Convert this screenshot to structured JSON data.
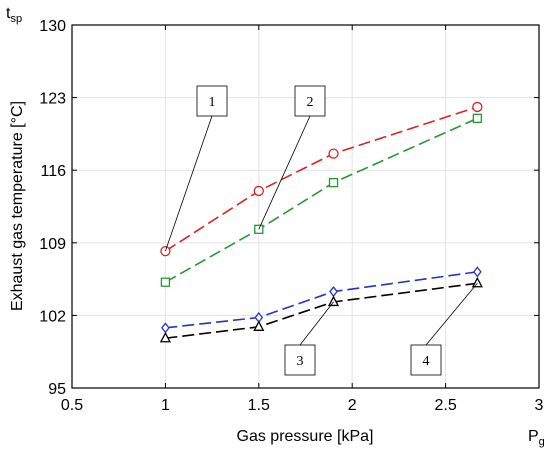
{
  "chart_data": {
    "type": "line",
    "xlabel": "Gas pressure [kPa]",
    "ylabel": "Exhaust gas temperature [°C]",
    "x_symbol": "P",
    "x_symbol_sub": "g",
    "y_symbol": "t",
    "y_symbol_sub": "sp",
    "xlim": [
      0.5,
      3
    ],
    "ylim": [
      95,
      130
    ],
    "xticks": [
      0.5,
      1,
      1.5,
      2,
      2.5,
      3
    ],
    "yticks": [
      95,
      102,
      109,
      116,
      123,
      130
    ],
    "grid": true,
    "series": [
      {
        "marker": "circle",
        "color": "#dd2222",
        "x": [
          1,
          1.5,
          1.9,
          2.67
        ],
        "y": [
          108.2,
          114,
          117.6,
          122.1
        ]
      },
      {
        "marker": "square",
        "color": "#229933",
        "x": [
          1,
          1.5,
          1.9,
          2.67
        ],
        "y": [
          105.2,
          110.3,
          114.8,
          121
        ]
      },
      {
        "marker": "diamond",
        "color": "#2233cc",
        "x": [
          1,
          1.5,
          1.9,
          2.67
        ],
        "y": [
          100.8,
          101.8,
          104.3,
          106.2
        ]
      },
      {
        "marker": "triangle",
        "color": "#000000",
        "x": [
          1,
          1.5,
          1.9,
          2.67
        ],
        "y": [
          99.8,
          100.9,
          103.3,
          105.1
        ]
      }
    ],
    "callouts": [
      {
        "label": "1",
        "series": 0,
        "point": 0
      },
      {
        "label": "2",
        "series": 1,
        "point": 1
      },
      {
        "label": "3",
        "series": 3,
        "point": 2
      },
      {
        "label": "4",
        "series": 3,
        "point": 3
      }
    ]
  }
}
